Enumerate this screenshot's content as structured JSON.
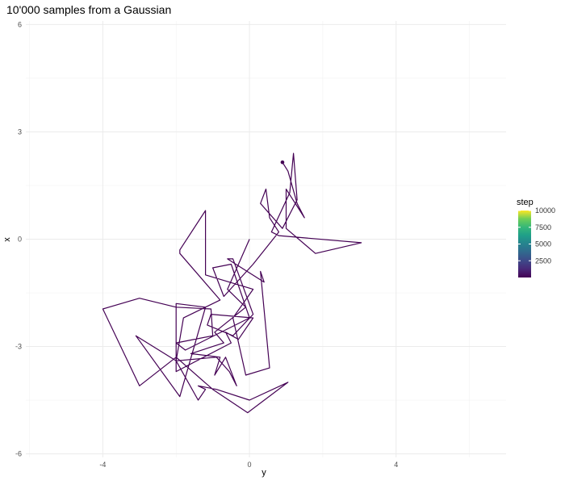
{
  "chart_data": {
    "type": "line",
    "title": "10'000 samples from a Gaussian",
    "xlabel": "y",
    "ylabel": "x",
    "xlim": [
      -6.1,
      7.0
    ],
    "ylim": [
      -6.1,
      6.1
    ],
    "x_ticks": [
      -4,
      0,
      4
    ],
    "x_tick_labels": [
      "-4",
      "0",
      "4"
    ],
    "y_ticks": [
      -6,
      -3,
      0,
      3,
      6
    ],
    "y_tick_labels": [
      "-6",
      "-3",
      "0",
      "3",
      "6"
    ],
    "grid": true,
    "legend": {
      "title": "step",
      "position": "right",
      "colorscale": "viridis",
      "range": [
        1,
        10000
      ],
      "breaks": [
        2500,
        5000,
        7500,
        10000
      ],
      "break_labels": [
        "2500",
        "5000",
        "7500",
        "10000"
      ]
    },
    "series": [
      {
        "color": "#440154",
        "points": [
          [
            0.0,
            0.0
          ],
          [
            -0.6,
            -1.4
          ],
          [
            -0.1,
            -1.9
          ],
          [
            -0.95,
            -2.6
          ],
          [
            -0.7,
            -2.9
          ],
          [
            -1.6,
            -3.2
          ],
          [
            -0.8,
            -3.3
          ],
          [
            -0.95,
            -3.8
          ],
          [
            -0.65,
            -3.3
          ],
          [
            -0.35,
            -4.1
          ],
          [
            -0.55,
            -3.7
          ],
          [
            -0.9,
            -3.3
          ],
          [
            -2.0,
            -3.4
          ],
          [
            -3.1,
            -2.7
          ],
          [
            -1.9,
            -4.4
          ],
          [
            -1.2,
            -1.9
          ],
          [
            -2.0,
            -1.8
          ],
          [
            -2.0,
            -3.7
          ],
          [
            -0.5,
            -2.9
          ],
          [
            -0.65,
            -2.6
          ],
          [
            -0.3,
            -2.8
          ],
          [
            0.1,
            -2.2
          ],
          [
            -1.05,
            -2.1
          ],
          [
            -1.15,
            -2.4
          ],
          [
            -0.45,
            -2.7
          ],
          [
            0.1,
            -2.1
          ],
          [
            -0.45,
            -0.55
          ],
          [
            -0.6,
            -0.55
          ],
          [
            -0.45,
            -0.65
          ],
          [
            0.4,
            -1.2
          ],
          [
            0.3,
            -0.9
          ],
          [
            0.55,
            -3.6
          ],
          [
            -0.1,
            -3.8
          ],
          [
            -0.45,
            -2.2
          ],
          [
            0.1,
            -1.4
          ],
          [
            -1.2,
            -1.0
          ],
          [
            -1.2,
            0.8
          ],
          [
            -1.9,
            -0.3
          ],
          [
            -1.9,
            -0.4
          ],
          [
            -0.8,
            -1.7
          ],
          [
            -1.8,
            -2.2
          ],
          [
            -2.0,
            -3.4
          ],
          [
            -1.4,
            -4.5
          ],
          [
            -1.2,
            -4.2
          ],
          [
            -1.4,
            -4.1
          ],
          [
            -0.9,
            -4.2
          ],
          [
            0.0,
            -4.5
          ],
          [
            1.05,
            -4.0
          ],
          [
            -0.05,
            -4.85
          ],
          [
            -1.0,
            -4.2
          ],
          [
            -2.0,
            -3.3
          ],
          [
            -3.0,
            -4.1
          ],
          [
            -4.0,
            -1.95
          ],
          [
            -3.0,
            -1.65
          ],
          [
            -2.0,
            -1.9
          ],
          [
            -1.05,
            -1.95
          ],
          [
            -1.0,
            -2.7
          ],
          [
            -2.0,
            -2.9
          ],
          [
            -1.75,
            -3.1
          ],
          [
            0.0,
            -2.2
          ],
          [
            -0.5,
            -0.7
          ],
          [
            -1.0,
            -0.8
          ],
          [
            -0.7,
            -1.6
          ],
          [
            0.1,
            -0.7
          ],
          [
            0.8,
            0.2
          ],
          [
            0.55,
            0.6
          ],
          [
            0.45,
            1.4
          ],
          [
            0.3,
            1.0
          ],
          [
            0.9,
            0.3
          ],
          [
            1.3,
            1.1
          ],
          [
            1.2,
            2.4
          ],
          [
            1.1,
            1.3
          ],
          [
            0.6,
            0.2
          ],
          [
            0.8,
            0.1
          ],
          [
            3.05,
            -0.1
          ],
          [
            1.8,
            -0.4
          ],
          [
            1.0,
            0.3
          ],
          [
            1.0,
            1.4
          ],
          [
            1.5,
            0.6
          ],
          [
            1.3,
            1.0
          ],
          [
            1.05,
            1.9
          ],
          [
            0.9,
            2.15
          ]
        ]
      }
    ]
  }
}
